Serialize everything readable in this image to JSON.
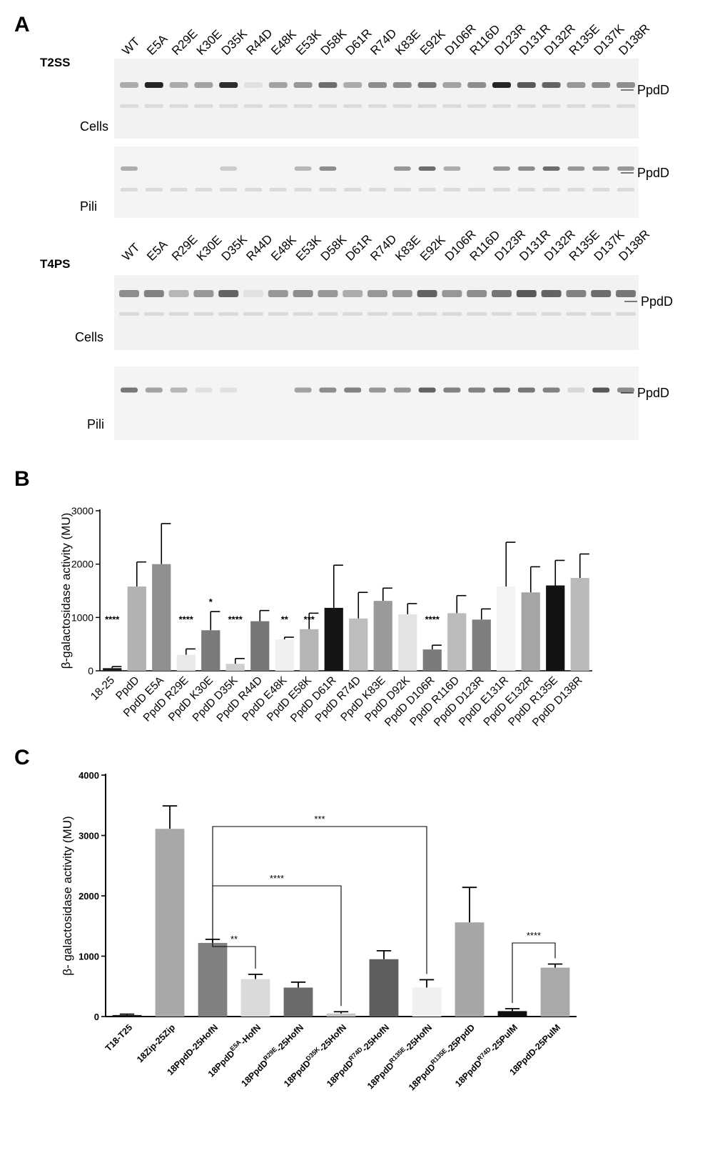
{
  "panels": {
    "a": "A",
    "b": "B",
    "c": "C"
  },
  "blots": {
    "lanes": [
      "WT",
      "E5A",
      "R29E",
      "K30E",
      "D35K",
      "R44D",
      "E48K",
      "E53K",
      "D58K",
      "D61R",
      "R74D",
      "K83E",
      "E92K",
      "D106R",
      "R116D",
      "D123R",
      "D131R",
      "D132R",
      "R135E",
      "D137K",
      "D138R"
    ],
    "band_label": "PpdD",
    "t2ss": {
      "title": "T2SS",
      "cells_label": "Cells",
      "pili_label": "Pili",
      "cells_intensity": [
        0.3,
        0.95,
        0.3,
        0.35,
        0.9,
        0.05,
        0.35,
        0.4,
        0.6,
        0.3,
        0.45,
        0.45,
        0.55,
        0.35,
        0.45,
        0.95,
        0.7,
        0.65,
        0.4,
        0.45,
        0.45
      ],
      "pili_intensity": [
        0.3,
        0.0,
        0.0,
        0.0,
        0.15,
        0.0,
        0.0,
        0.25,
        0.45,
        0.0,
        0.0,
        0.4,
        0.6,
        0.3,
        0.0,
        0.4,
        0.45,
        0.6,
        0.4,
        0.4,
        0.4
      ]
    },
    "t4ps": {
      "title": "T4PS",
      "cells_label": "Cells",
      "pili_label": "Pili",
      "cells_intensity": [
        0.45,
        0.5,
        0.25,
        0.4,
        0.65,
        0.05,
        0.4,
        0.45,
        0.4,
        0.3,
        0.4,
        0.4,
        0.65,
        0.4,
        0.45,
        0.55,
        0.7,
        0.65,
        0.5,
        0.6,
        0.55
      ],
      "pili_intensity": [
        0.55,
        0.35,
        0.25,
        0.05,
        0.05,
        0.0,
        0.0,
        0.35,
        0.45,
        0.5,
        0.4,
        0.4,
        0.65,
        0.5,
        0.5,
        0.55,
        0.55,
        0.5,
        0.1,
        0.7,
        0.45
      ]
    }
  },
  "chart_data": [
    {
      "type": "bar",
      "panel": "B",
      "ylabel": "β-galactosidase activity (MU)",
      "ylim": [
        0,
        3000
      ],
      "yticks": [
        0,
        1000,
        2000,
        3000
      ],
      "categories": [
        "18-25",
        "PpdD",
        "PpdD E5A",
        "PpdD R29E",
        "PpdD K30E",
        "PpdD D35K",
        "PpdD R44D",
        "PpdD E48K",
        "PpdD E58K",
        "PpdD D61R",
        "PpdD R74D",
        "PpdD K83E",
        "PpdD D92K",
        "PpdD D106R",
        "PpdD R116D",
        "PpdD D123R",
        "PpdD E131R",
        "PpdD E132R",
        "PpdD R135E",
        "PpdD D138R"
      ],
      "values": [
        50,
        1580,
        2000,
        300,
        760,
        130,
        930,
        590,
        780,
        1180,
        980,
        1310,
        1060,
        400,
        1080,
        960,
        1580,
        1470,
        1600,
        1740
      ],
      "errors": [
        30,
        460,
        760,
        110,
        350,
        100,
        200,
        40,
        300,
        800,
        490,
        240,
        200,
        80,
        330,
        200,
        830,
        480,
        470,
        450
      ],
      "significance": [
        "****",
        "",
        "",
        "****",
        "*",
        "****",
        "",
        "**",
        "***",
        "",
        "",
        "",
        "",
        "****",
        "",
        "",
        "",
        "",
        "",
        ""
      ],
      "colors": [
        "#1a1a1a",
        "#b2b2b2",
        "#8f8f8f",
        "#e9e9e9",
        "#7a7a7a",
        "#cfcfcf",
        "#777777",
        "#f0f0f0",
        "#b5b5b5",
        "#141414",
        "#bdbdbd",
        "#9a9a9a",
        "#e3e3e3",
        "#7b7b7b",
        "#bcbcbc",
        "#7e7e7e",
        "#f3f3f3",
        "#a5a5a5",
        "#121212",
        "#bababa"
      ]
    },
    {
      "type": "bar",
      "panel": "C",
      "ylabel": "β- galactosidase  activity (MU)",
      "ylim": [
        0,
        4000
      ],
      "yticks": [
        0,
        1000,
        2000,
        3000,
        4000
      ],
      "categories": [
        {
          "base": "T18-T25",
          "sup": "",
          "tail": ""
        },
        {
          "base": "18Zip-25Zip",
          "sup": "",
          "tail": ""
        },
        {
          "base": "18PpdD-25HofN",
          "sup": "",
          "tail": ""
        },
        {
          "base": "18PpdD",
          "sup": "E5A",
          "tail": "-HofN"
        },
        {
          "base": "18PpdD",
          "sup": "R29E",
          "tail": "-25HofN"
        },
        {
          "base": "18PpdD",
          "sup": "D35K",
          "tail": "-25HofN"
        },
        {
          "base": "18PpdD",
          "sup": "R74D",
          "tail": "-25HofN"
        },
        {
          "base": "18PpdD",
          "sup": "R135E",
          "tail": "-25HofN"
        },
        {
          "base": "18PpdD",
          "sup": "R135E",
          "tail": "-25PpdD"
        },
        {
          "base": "18PpdD",
          "sup": "R74D",
          "tail": "-25PulM"
        },
        {
          "base": "18PpdD-25PulM",
          "sup": "",
          "tail": ""
        }
      ],
      "values": [
        25,
        3110,
        1220,
        620,
        480,
        50,
        950,
        480,
        1560,
        90,
        810
      ],
      "errors": [
        15,
        380,
        60,
        80,
        90,
        30,
        140,
        130,
        580,
        40,
        60
      ],
      "colors": [
        "#161616",
        "#a8a8a8",
        "#808080",
        "#dadada",
        "#6a6a6a",
        "#c6c6c6",
        "#5e5e5e",
        "#f0f0f0",
        "#a6a6a6",
        "#0e0e0e",
        "#a9a9a9"
      ],
      "brackets": [
        {
          "from": 2,
          "to": 3,
          "label": "**"
        },
        {
          "from": 2,
          "to": 5,
          "label": "****"
        },
        {
          "from": 2,
          "to": 7,
          "label": "***"
        },
        {
          "from": 9,
          "to": 10,
          "label": "****"
        }
      ]
    }
  ]
}
